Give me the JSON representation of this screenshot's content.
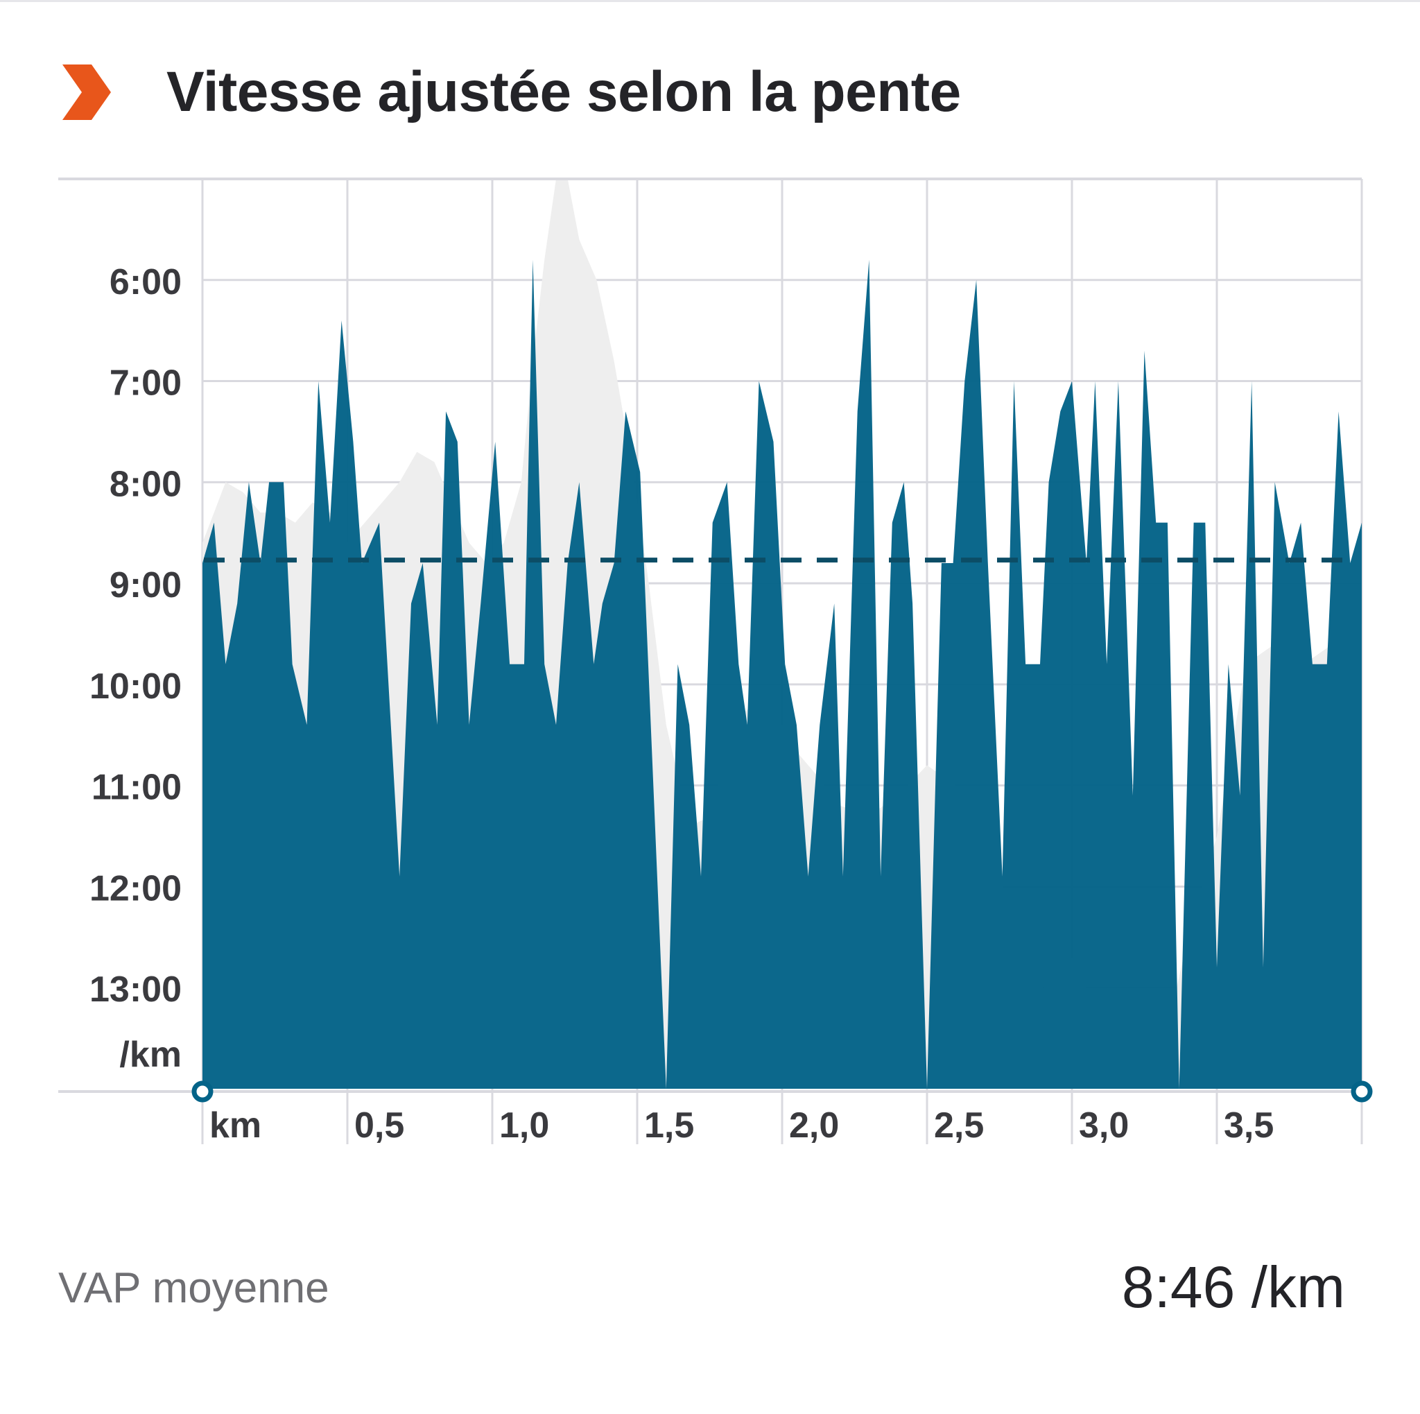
{
  "header": {
    "title": "Vitesse ajustée selon la pente",
    "icon": "orange-chevron-icon",
    "icon_color": "#e8561b"
  },
  "chart_data": {
    "type": "area",
    "title": "Vitesse ajustée selon la pente",
    "y_unit_label": "/km",
    "x_unit_label": "km",
    "y_ticks": [
      "6:00",
      "7:00",
      "8:00",
      "9:00",
      "10:00",
      "11:00",
      "12:00",
      "13:00"
    ],
    "y_tick_minutes": [
      6,
      7,
      8,
      9,
      10,
      11,
      12,
      13
    ],
    "x_tick_labels": [
      "0,5",
      "1,0",
      "1,5",
      "2,0",
      "2,5",
      "3,0",
      "3,5"
    ],
    "x_ticks": [
      0.5,
      1.0,
      1.5,
      2.0,
      2.5,
      3.0,
      3.5
    ],
    "xlim": [
      0,
      4.0
    ],
    "ylim_minutes": [
      5.0,
      14.0
    ],
    "y_inverted": true,
    "grid": true,
    "average_minutes": 8.77,
    "colors": {
      "pace_fill": "#046388",
      "elevation_fill": "#eeeeee",
      "average_line": "#0c4d66",
      "grid": "#d9d9df"
    },
    "series": [
      {
        "kind": "pace",
        "x": [
          0.0,
          0.04,
          0.08,
          0.12,
          0.16,
          0.2,
          0.23,
          0.28,
          0.31,
          0.36,
          0.4,
          0.44,
          0.48,
          0.52,
          0.55,
          0.61,
          0.68,
          0.72,
          0.76,
          0.81,
          0.84,
          0.88,
          0.92,
          0.96,
          1.01,
          1.06,
          1.11,
          1.14,
          1.18,
          1.22,
          1.26,
          1.3,
          1.35,
          1.38,
          1.42,
          1.46,
          1.51,
          1.6,
          1.64,
          1.68,
          1.72,
          1.76,
          1.81,
          1.85,
          1.88,
          1.92,
          1.97,
          2.01,
          2.05,
          2.09,
          2.13,
          2.18,
          2.21,
          2.26,
          2.3,
          2.34,
          2.38,
          2.42,
          2.45,
          2.5,
          2.55,
          2.59,
          2.63,
          2.67,
          2.71,
          2.76,
          2.8,
          2.84,
          2.89,
          2.92,
          2.96,
          3.0,
          3.05,
          3.08,
          3.12,
          3.16,
          3.21,
          3.25,
          3.29,
          3.33,
          3.37,
          3.42,
          3.46,
          3.5,
          3.54,
          3.58,
          3.62,
          3.66,
          3.7,
          3.75,
          3.79,
          3.83,
          3.88,
          3.92,
          3.96,
          4.0
        ],
        "pace_minutes": [
          8.8,
          8.4,
          9.8,
          9.2,
          8.0,
          8.8,
          8.0,
          8.0,
          9.8,
          10.4,
          7.0,
          8.4,
          6.4,
          7.6,
          8.8,
          8.4,
          11.9,
          9.2,
          8.8,
          10.4,
          7.3,
          7.6,
          10.4,
          9.2,
          7.6,
          9.8,
          9.8,
          5.8,
          9.8,
          10.4,
          8.8,
          8.0,
          9.8,
          9.2,
          8.8,
          7.3,
          7.9,
          14.0,
          9.8,
          10.4,
          11.9,
          8.4,
          8.0,
          9.8,
          10.4,
          7.0,
          7.6,
          9.8,
          10.4,
          11.9,
          10.4,
          9.2,
          11.9,
          7.3,
          5.8,
          11.9,
          8.4,
          8.0,
          9.2,
          14.0,
          8.8,
          8.8,
          7.0,
          6.0,
          8.8,
          11.9,
          7.0,
          9.8,
          9.8,
          8.0,
          7.3,
          7.0,
          8.8,
          7.0,
          9.8,
          7.0,
          11.1,
          6.7,
          8.4,
          8.4,
          14.0,
          8.4,
          8.4,
          12.8,
          9.8,
          11.1,
          7.0,
          12.8,
          8.0,
          8.8,
          8.4,
          9.8,
          9.8,
          7.3,
          8.8,
          8.4
        ]
      },
      {
        "kind": "elevation-background",
        "x": [
          0.0,
          0.04,
          0.08,
          0.14,
          0.2,
          0.26,
          0.32,
          0.38,
          0.44,
          0.5,
          0.56,
          0.62,
          0.68,
          0.74,
          0.8,
          0.86,
          0.92,
          0.98,
          1.04,
          1.1,
          1.14,
          1.18,
          1.22,
          1.26,
          1.3,
          1.36,
          1.42,
          1.48,
          1.54,
          1.6,
          1.68,
          1.76,
          1.82,
          1.9,
          2.0,
          2.06,
          2.12,
          2.2,
          2.3,
          2.4,
          2.5,
          2.6,
          2.7,
          2.8,
          2.9,
          3.0,
          3.1,
          3.2,
          3.3,
          3.4,
          3.5,
          3.6,
          3.7,
          3.8,
          3.9,
          4.0
        ],
        "pace_minutes": [
          8.6,
          8.3,
          8.0,
          8.1,
          8.3,
          8.3,
          8.4,
          8.2,
          8.3,
          8.6,
          8.4,
          8.2,
          8.0,
          7.7,
          7.8,
          8.2,
          8.6,
          8.8,
          8.6,
          8.0,
          6.8,
          5.8,
          5.0,
          5.0,
          5.6,
          6.0,
          6.8,
          7.8,
          9.0,
          10.4,
          11.4,
          11.3,
          10.4,
          10.2,
          10.4,
          10.7,
          10.9,
          11.2,
          11.3,
          11.1,
          10.8,
          11.0,
          11.5,
          12.3,
          13.0,
          12.7,
          13.3,
          14.0,
          13.8,
          12.5,
          11.5,
          9.8,
          9.6,
          9.8,
          9.6,
          9.4
        ]
      }
    ]
  },
  "footer": {
    "label": "VAP moyenne",
    "value": "8:46 /km"
  }
}
